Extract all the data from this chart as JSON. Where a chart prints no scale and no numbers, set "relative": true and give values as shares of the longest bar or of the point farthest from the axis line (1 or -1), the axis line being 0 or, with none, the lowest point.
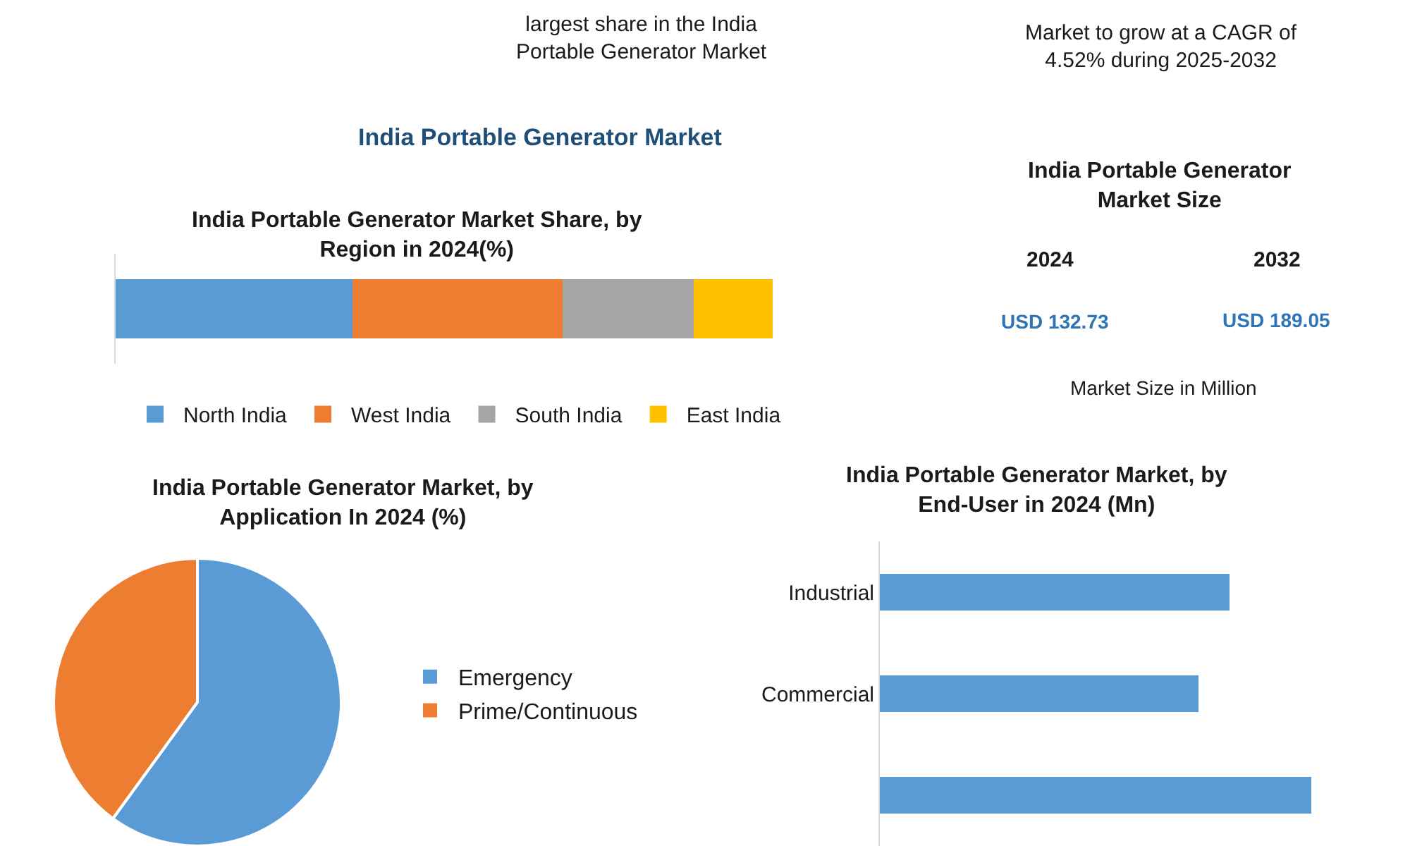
{
  "chart_data": [
    {
      "type": "other",
      "title": "India Portable Generator Market",
      "annotations": [
        "largest share in the India\nPortable Generator Market",
        "Market to grow at a CAGR of\n4.52% during 2025-2032"
      ]
    },
    {
      "type": "bar",
      "subtitle": "India Portable Generator Market Share, by\nRegion in 2024(%)",
      "orientation": "horizontal",
      "stacked": true,
      "relative": true,
      "categories": [
        null
      ],
      "legend": "bottom",
      "series": [
        {
          "name": "North India",
          "color": "#5b9bd5",
          "values": [
            0.36
          ]
        },
        {
          "name": "West India",
          "color": "#ed7d31",
          "values": [
            0.32
          ]
        },
        {
          "name": "South India",
          "color": "#a5a5a5",
          "values": [
            0.2
          ]
        },
        {
          "name": "East India",
          "color": "#ffc000",
          "values": [
            0.12
          ]
        }
      ]
    },
    {
      "type": "other",
      "title": "India Portable Generator\nMarket Size",
      "annotations": [
        "2024",
        "2032",
        "USD 132.73",
        "USD 189.05",
        "Market Size in Million"
      ]
    },
    {
      "type": "pie",
      "title": "India Portable Generator Market, by\nApplication In 2024 (%)",
      "categories": [
        "Emergency",
        "Prime/Continuous"
      ],
      "values": [
        60,
        40
      ],
      "colors": [
        "#5b9bd5",
        "#ed7d31"
      ],
      "legend": "right"
    },
    {
      "type": "bar",
      "title": "India Portable Generator Market, by\nEnd-User in 2024 (Mn)",
      "orientation": "horizontal",
      "relative": true,
      "categories": [
        "Industrial",
        "Commercial",
        null
      ],
      "values": [
        0.81,
        0.74,
        1
      ],
      "color": "#5b9bd5"
    }
  ]
}
